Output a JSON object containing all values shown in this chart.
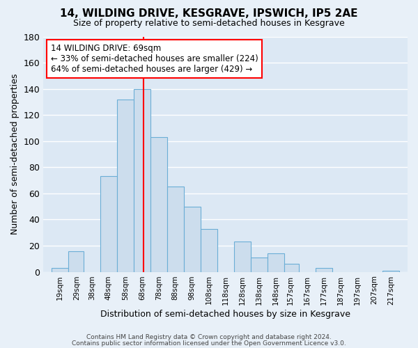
{
  "title": "14, WILDING DRIVE, KESGRAVE, IPSWICH, IP5 2AE",
  "subtitle": "Size of property relative to semi-detached houses in Kesgrave",
  "xlabel": "Distribution of semi-detached houses by size in Kesgrave",
  "ylabel": "Number of semi-detached properties",
  "bar_color": "#ccdded",
  "bar_edge_color": "#6baed6",
  "marker_color": "red",
  "marker_value": 69,
  "bin_edges": [
    14,
    24,
    33,
    43,
    53,
    63,
    73,
    83,
    93,
    103,
    113,
    123,
    133,
    143,
    153,
    162,
    172,
    182,
    192,
    202,
    212,
    222
  ],
  "counts": [
    3,
    16,
    0,
    73,
    132,
    140,
    103,
    65,
    50,
    33,
    0,
    23,
    11,
    14,
    6,
    0,
    3,
    0,
    0,
    0,
    1
  ],
  "tick_labels": [
    "19sqm",
    "29sqm",
    "38sqm",
    "48sqm",
    "58sqm",
    "68sqm",
    "78sqm",
    "88sqm",
    "98sqm",
    "108sqm",
    "118sqm",
    "128sqm",
    "138sqm",
    "148sqm",
    "157sqm",
    "167sqm",
    "177sqm",
    "187sqm",
    "197sqm",
    "207sqm",
    "217sqm"
  ],
  "tick_positions": [
    19,
    29,
    38,
    48,
    58,
    68,
    78,
    88,
    98,
    108,
    118,
    128,
    138,
    148,
    157,
    167,
    177,
    187,
    197,
    207,
    217
  ],
  "ylim": [
    0,
    180
  ],
  "yticks": [
    0,
    20,
    40,
    60,
    80,
    100,
    120,
    140,
    160,
    180
  ],
  "xlim": [
    9,
    227
  ],
  "annotation_title": "14 WILDING DRIVE: 69sqm",
  "annotation_line1": "← 33% of semi-detached houses are smaller (224)",
  "annotation_line2": "64% of semi-detached houses are larger (429) →",
  "annotation_box_color": "white",
  "annotation_box_edge": "red",
  "footer1": "Contains HM Land Registry data © Crown copyright and database right 2024.",
  "footer2": "Contains public sector information licensed under the Open Government Licence v3.0.",
  "bg_color": "#e8f0f8",
  "grid_color": "#ffffff",
  "plot_bg": "#dce8f4"
}
